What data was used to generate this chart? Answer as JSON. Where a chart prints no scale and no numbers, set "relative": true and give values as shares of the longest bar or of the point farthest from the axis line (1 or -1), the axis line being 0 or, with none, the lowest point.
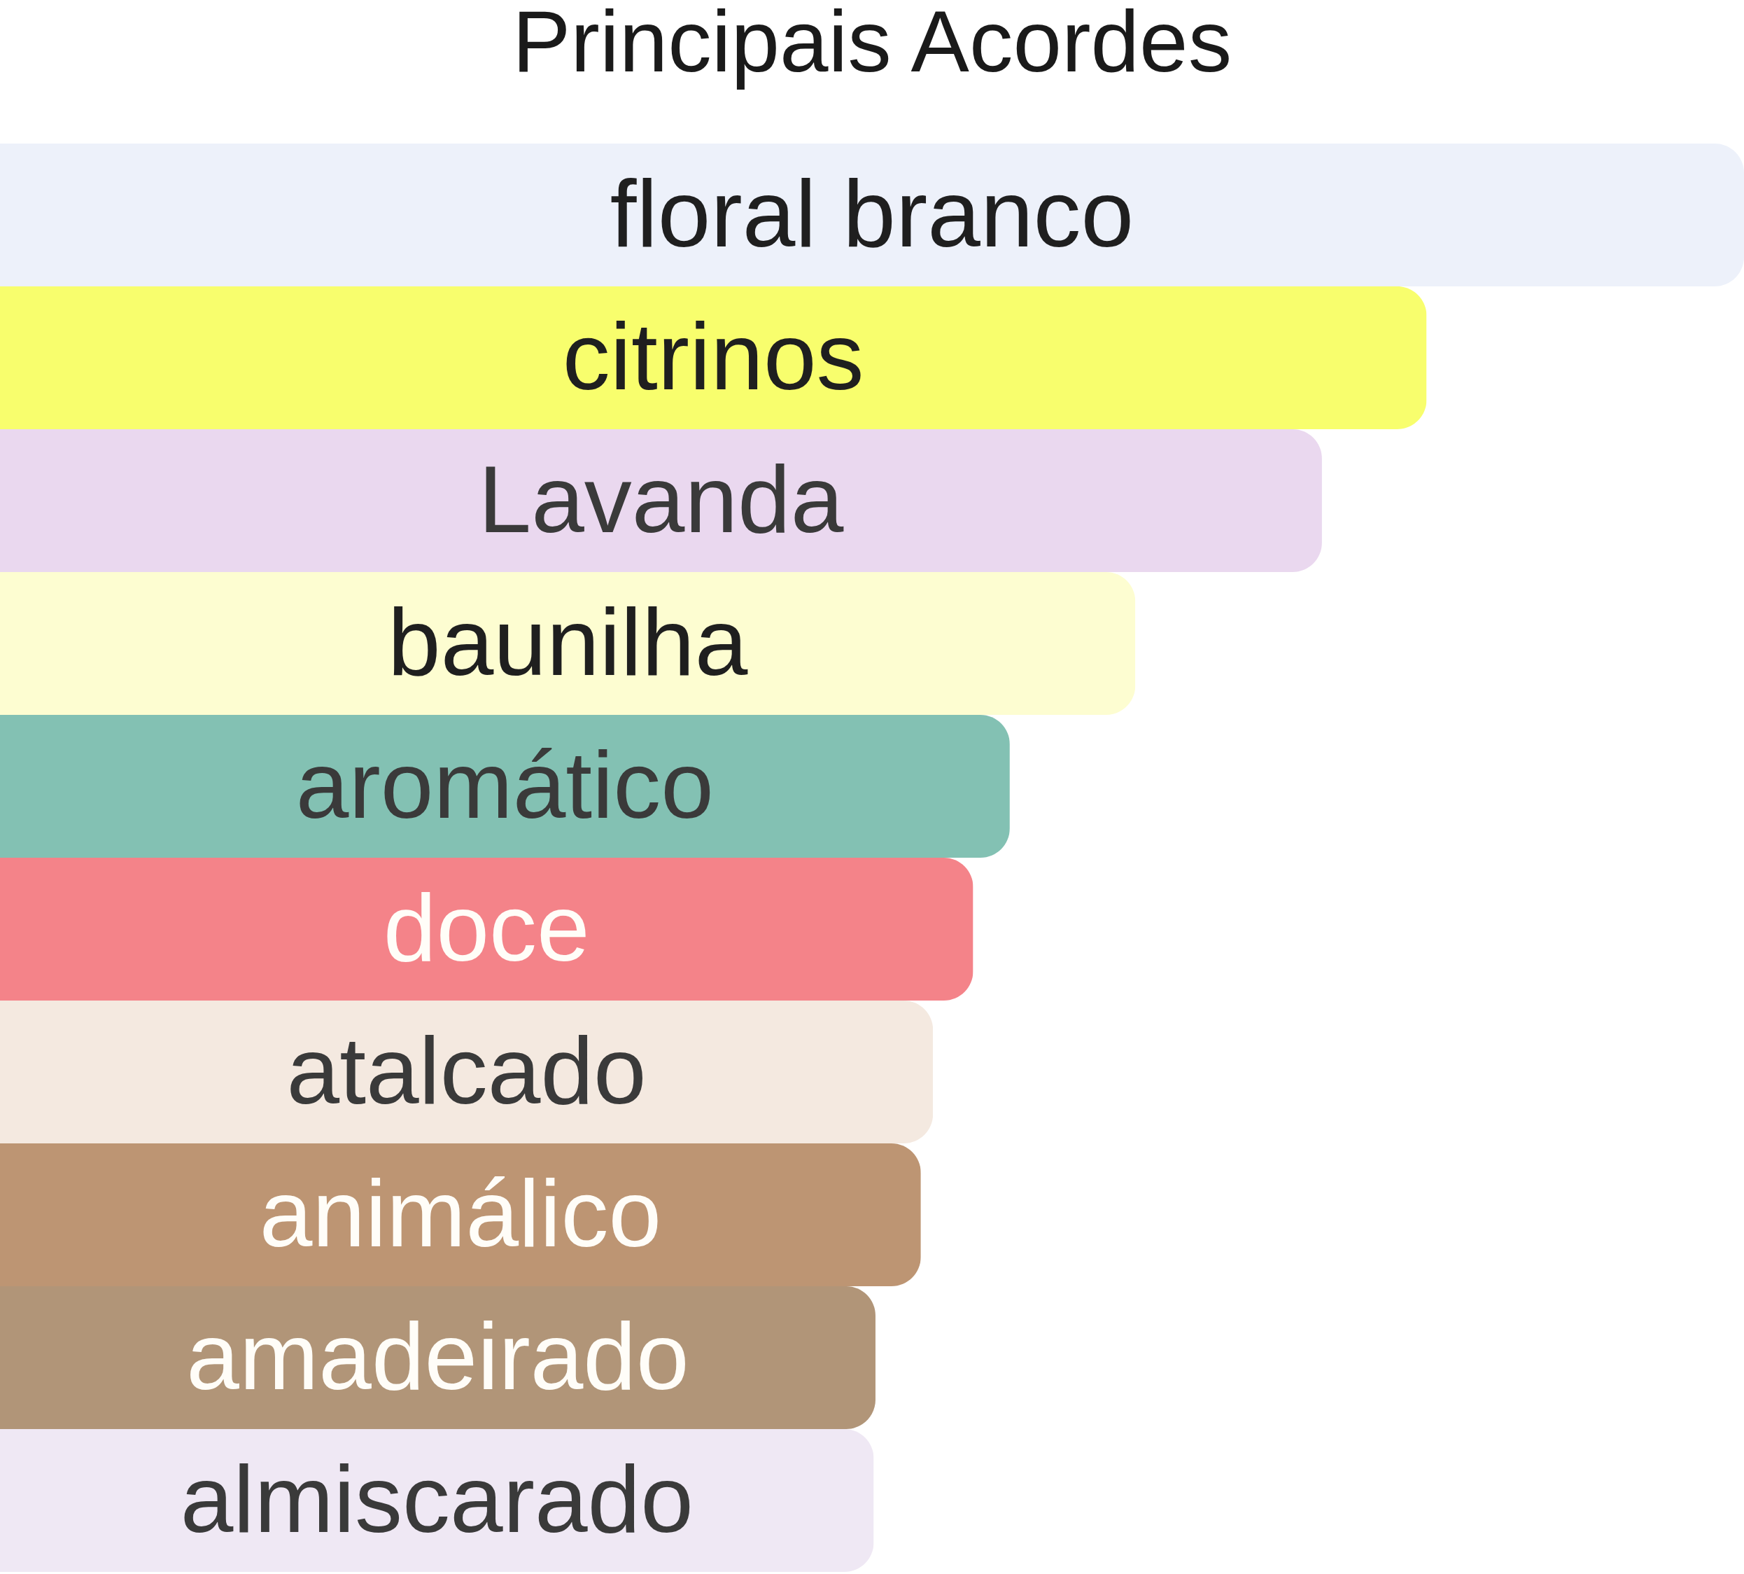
{
  "chart_data": {
    "type": "bar",
    "orientation": "horizontal",
    "relative": true,
    "title": "Principais Acordes",
    "categories": [
      "floral branco",
      "citrinos",
      "Lavanda",
      "baunilha",
      "aromático",
      "doce",
      "atalcado",
      "animálico",
      "amadeirado",
      "almiscarado"
    ],
    "values": [
      1,
      0.818,
      0.758,
      0.651,
      0.579,
      0.558,
      0.535,
      0.528,
      0.502,
      0.501
    ],
    "colors": [
      "#edf1fa",
      "#f8fe6d",
      "#ead8ef",
      "#fdfdd1",
      "#83c1b3",
      "#f48389",
      "#f4e9e0",
      "#bd9573",
      "#b19578",
      "#efe8f4"
    ]
  }
}
